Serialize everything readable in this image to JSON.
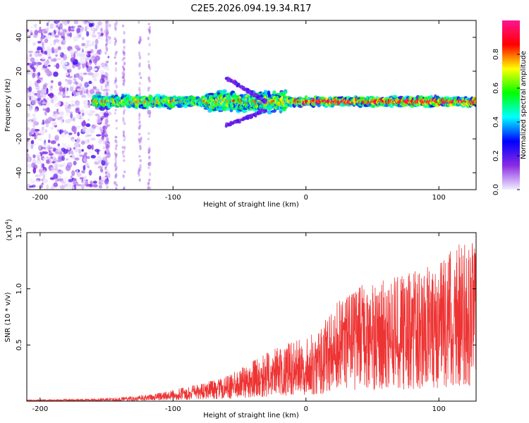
{
  "chart_data": [
    {
      "type": "heatmap",
      "title": "C2E5.2026.094.19.34.R17",
      "xlabel": "Height of straight line (km)",
      "ylabel": "Frequency (Hz)",
      "xlim": [
        -210,
        128
      ],
      "ylim": [
        -50,
        50
      ],
      "x_ticks": [
        -200,
        -100,
        0,
        100
      ],
      "y_ticks": [
        -40,
        -20,
        0,
        20,
        40
      ],
      "colorbar": {
        "label": "Normalized spectral amplitude",
        "range": [
          0,
          1
        ],
        "ticks": [
          0.0,
          0.2,
          0.4,
          0.6,
          0.8
        ],
        "colors": [
          "#f2f0ff",
          "#8a2be2",
          "#0000ff",
          "#00ffff",
          "#00ff00",
          "#ffff00",
          "#ff0000",
          "#ff1493"
        ]
      },
      "features": {
        "noise_region_x": [
          -210,
          -160
        ],
        "band_start_x": -160,
        "band_center_hz": 2,
        "band_halfwidth_hz": 6
      }
    },
    {
      "type": "line",
      "title": "",
      "xlabel": "Height of straight line (km)",
      "ylabel": "SNR (10 * v/v)",
      "multiplier_label": "(x10",
      "multiplier_exponent": "4",
      "multiplier_close": ")",
      "xlim": [
        -210,
        128
      ],
      "ylim": [
        0,
        1.5
      ],
      "x_ticks": [
        -200,
        -100,
        0,
        100
      ],
      "y_ticks": [
        0.5,
        1.0,
        1.5
      ],
      "series_color": "#ee3333",
      "envelope": {
        "x": [
          -210,
          -180,
          -160,
          -140,
          -120,
          -100,
          -80,
          -60,
          -40,
          -20,
          -5,
          10,
          20,
          30,
          40,
          60,
          80,
          100,
          115,
          128
        ],
        "y": [
          0.01,
          0.015,
          0.02,
          0.03,
          0.05,
          0.09,
          0.14,
          0.2,
          0.33,
          0.45,
          0.5,
          0.58,
          0.78,
          0.85,
          0.95,
          0.98,
          1.05,
          1.15,
          1.3,
          1.35
        ]
      }
    }
  ]
}
